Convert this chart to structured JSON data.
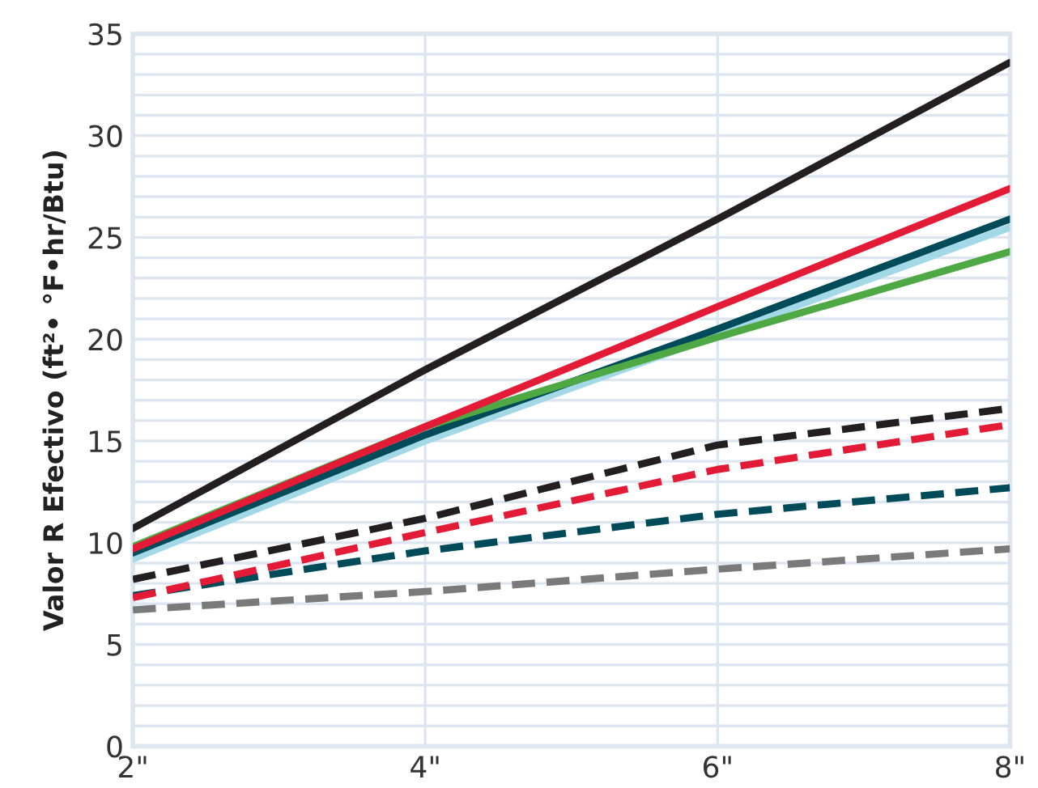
{
  "chart_data": {
    "type": "line",
    "ylabel": "Valor R Efectivo (ft²• °F•hr/Btu)",
    "categories": [
      "2\"",
      "4\"",
      "6\"",
      "8\""
    ],
    "ylim": [
      0,
      35
    ],
    "yticks": [
      0,
      {
        "value": 1,
        "label": null
      },
      {
        "value": 2,
        "label": null
      },
      {
        "value": 3,
        "label": null
      },
      {
        "value": 4,
        "label": null
      },
      5,
      {
        "value": 6,
        "label": null
      },
      {
        "value": 7,
        "label": null
      },
      {
        "value": 8,
        "label": null
      },
      {
        "value": 9,
        "label": null
      },
      10,
      {
        "value": 11,
        "label": null
      },
      {
        "value": 12,
        "label": null
      },
      {
        "value": 13,
        "label": null
      },
      {
        "value": 14,
        "label": null
      },
      15,
      {
        "value": 16,
        "label": null
      },
      {
        "value": 17,
        "label": null
      },
      {
        "value": 18,
        "label": null
      },
      {
        "value": 19,
        "label": null
      },
      20,
      {
        "value": 21,
        "label": null
      },
      {
        "value": 22,
        "label": null
      },
      {
        "value": 23,
        "label": null
      },
      {
        "value": 24,
        "label": null
      },
      25,
      {
        "value": 26,
        "label": null
      },
      {
        "value": 27,
        "label": null
      },
      {
        "value": 28,
        "label": null
      },
      {
        "value": 29,
        "label": null
      },
      30,
      {
        "value": 31,
        "label": null
      },
      {
        "value": 32,
        "label": null
      },
      {
        "value": 33,
        "label": null
      },
      {
        "value": 34,
        "label": null
      },
      35
    ],
    "grid": true,
    "legend": false,
    "marker": "none",
    "series": [
      {
        "color": "#7a7a7a",
        "line_style": "dashed",
        "values": [
          6.7,
          7.6,
          8.7,
          9.7
        ]
      },
      {
        "color": "#004b5a",
        "line_style": "dashed",
        "values": [
          7.4,
          9.6,
          11.4,
          12.7
        ]
      },
      {
        "color": "#e31b37",
        "line_style": "dashed",
        "values": [
          7.3,
          10.5,
          13.6,
          15.8
        ]
      },
      {
        "color": "#231f20",
        "line_style": "dashed",
        "values": [
          8.2,
          11.2,
          14.8,
          16.6
        ]
      },
      {
        "color": "#a3d9e6",
        "line_style": "solid",
        "values": [
          9.2,
          15.0,
          20.2,
          25.5
        ]
      },
      {
        "color": "#004b5a",
        "line_style": "solid",
        "values": [
          9.5,
          15.3,
          20.5,
          25.9
        ]
      },
      {
        "color": "#4ea844",
        "line_style": "solid",
        "values": [
          9.8,
          15.7,
          20.1,
          24.3
        ]
      },
      {
        "color": "#e31b37",
        "line_style": "solid",
        "values": [
          9.7,
          15.7,
          21.6,
          27.4
        ]
      },
      {
        "color": "#231f20",
        "line_style": "solid",
        "values": [
          10.7,
          18.5,
          25.9,
          33.6
        ]
      }
    ]
  }
}
